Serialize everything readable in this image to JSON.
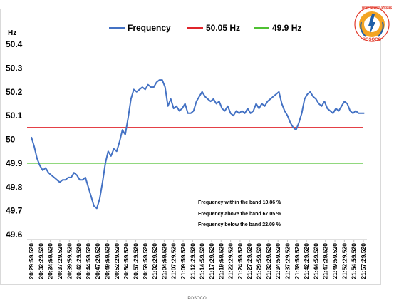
{
  "chart_data": {
    "type": "line",
    "ylabel": "Hz",
    "ylim": [
      49.6,
      50.4
    ],
    "yticks": [
      "50.4",
      "50.3",
      "50.2",
      "50.1",
      "50",
      "49.9",
      "49.8",
      "49.7",
      "49.6"
    ],
    "grid": false,
    "legend_placement": "top",
    "x_ticks": [
      "20:29:59.520",
      "20:32:29.520",
      "20:34:59.520",
      "20:37:29.520",
      "20:39:59.520",
      "20:42:29.520",
      "20:44:59.520",
      "20:47:29.520",
      "20:49:59.520",
      "20:52:29.520",
      "20:54:59.520",
      "20:57:29.520",
      "20:59:59.520",
      "21:02:29.520",
      "21:04:59.520",
      "21:07:29.520",
      "21:09:59.520",
      "21:12:29.520",
      "21:14:59.520",
      "21:17:29.520",
      "21:19:59.520",
      "21:22:29.520",
      "21:24:59.520",
      "21:27:29.520",
      "21:29:59.520",
      "21:32:29.520",
      "21:34:59.520",
      "21:37:29.520",
      "21:39:59.520",
      "21:42:29.520",
      "21:44:59.520",
      "21:47:29.520",
      "21:49:59.520",
      "21:52:29.520",
      "21:54:59.520",
      "21:57:29.520"
    ],
    "series": [
      {
        "name": "Frequency",
        "color": "#4472c4",
        "x": [
          0,
          0.3,
          0.6,
          0.9,
          1.2,
          1.5,
          1.8,
          2.1,
          2.4,
          2.7,
          3.0,
          3.3,
          3.6,
          3.9,
          4.2,
          4.5,
          4.8,
          5.1,
          5.4,
          5.7,
          6.0,
          6.3,
          6.6,
          6.9,
          7.2,
          7.5,
          7.8,
          8.1,
          8.4,
          8.7,
          9.0,
          9.3,
          9.6,
          9.9,
          10.2,
          10.5,
          10.8,
          11.1,
          11.4,
          11.7,
          12.0,
          12.3,
          12.6,
          12.9,
          13.2,
          13.5,
          13.8,
          14.1,
          14.4,
          14.7,
          15.0,
          15.3,
          15.6,
          15.9,
          16.2,
          16.5,
          16.8,
          17.1,
          17.4,
          17.7,
          18.0,
          18.3,
          18.6,
          18.9,
          19.2,
          19.5,
          19.8,
          20.1,
          20.4,
          20.7,
          21.0,
          21.3,
          21.6,
          21.9,
          22.2,
          22.5,
          22.8,
          23.1,
          23.4,
          23.7,
          24.0,
          24.3,
          24.6,
          24.9,
          25.2,
          25.5,
          25.8,
          26.1,
          26.4,
          26.7,
          27.0,
          27.3,
          27.6,
          27.9,
          28.2,
          28.5,
          28.8,
          29.1,
          29.4,
          29.7,
          30.0,
          30.3,
          30.6,
          30.9,
          31.2,
          31.5,
          31.8,
          32.1,
          32.4,
          32.7,
          33.0,
          33.3,
          33.6,
          33.9,
          34.2,
          34.5,
          34.8,
          35.1
        ],
        "values": [
          50.01,
          49.97,
          49.92,
          49.89,
          49.87,
          49.88,
          49.86,
          49.85,
          49.84,
          49.83,
          49.82,
          49.83,
          49.83,
          49.84,
          49.84,
          49.86,
          49.85,
          49.83,
          49.83,
          49.84,
          49.8,
          49.76,
          49.72,
          49.71,
          49.75,
          49.82,
          49.9,
          49.95,
          49.93,
          49.96,
          49.95,
          49.99,
          50.04,
          50.02,
          50.09,
          50.17,
          50.21,
          50.2,
          50.21,
          50.22,
          50.21,
          50.23,
          50.22,
          50.22,
          50.24,
          50.25,
          50.25,
          50.22,
          50.14,
          50.17,
          50.13,
          50.14,
          50.12,
          50.13,
          50.15,
          50.11,
          50.11,
          50.12,
          50.16,
          50.18,
          50.2,
          50.18,
          50.17,
          50.16,
          50.17,
          50.15,
          50.16,
          50.13,
          50.12,
          50.14,
          50.11,
          50.1,
          50.12,
          50.11,
          50.12,
          50.11,
          50.13,
          50.11,
          50.12,
          50.15,
          50.13,
          50.15,
          50.14,
          50.16,
          50.17,
          50.18,
          50.19,
          50.2,
          50.15,
          50.12,
          50.1,
          50.07,
          50.05,
          50.04,
          50.07,
          50.11,
          50.17,
          50.19,
          50.2,
          50.18,
          50.17,
          50.15,
          50.14,
          50.16,
          50.13,
          50.12,
          50.11,
          50.13,
          50.12,
          50.14,
          50.16,
          50.15,
          50.12,
          50.11,
          50.12,
          50.11,
          50.11,
          50.11
        ]
      },
      {
        "name": "50.05 Hz",
        "color": "#e0252b",
        "values": [
          50.05
        ]
      },
      {
        "name": "49.9 Hz",
        "color": "#4fc132",
        "values": [
          49.9
        ]
      }
    ],
    "annotations": [
      "Frequency within the band  10.86 %",
      "Frequency above the band 67.05 %",
      "Frequency below the band  22.09 %"
    ]
  },
  "footer_text": "POSOCO",
  "logo_text": "POSOCO",
  "logo_hindi": "पावर सिस्टम ऑपरेशन"
}
